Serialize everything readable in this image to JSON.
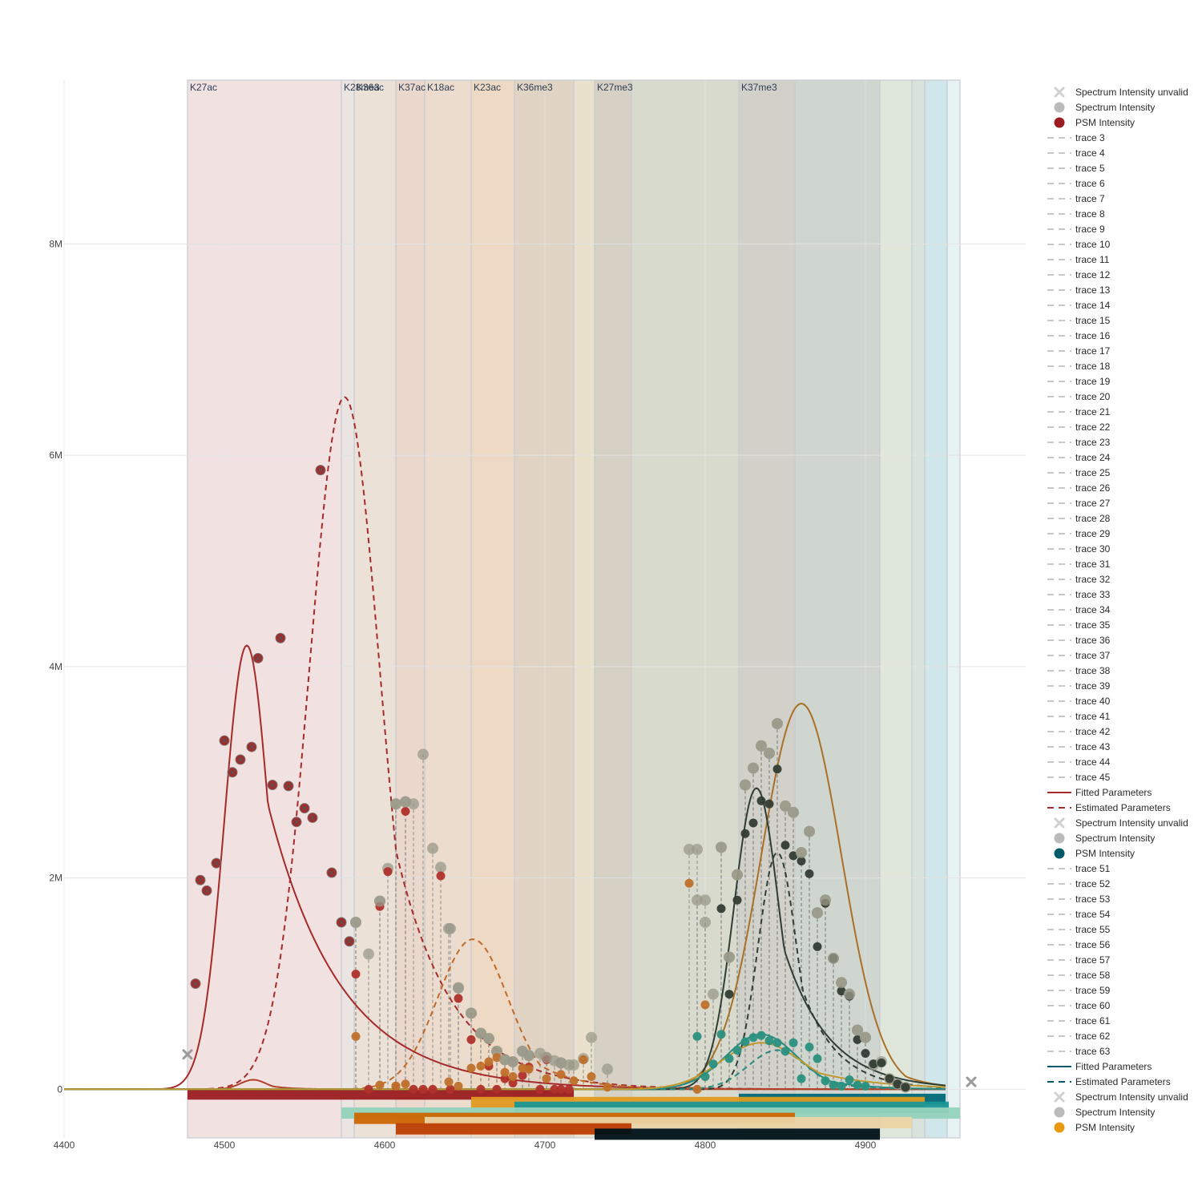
{
  "chart_data": {
    "type": "scatter",
    "title": "",
    "xlabel": "",
    "ylabel": "",
    "xlim": [
      4400,
      5000
    ],
    "ylim": [
      -460000,
      9550000
    ],
    "grid": true,
    "legend_placement": "right",
    "x_ticks": [
      {
        "v": 4400,
        "label": "4400"
      },
      {
        "v": 4500,
        "label": "4500"
      },
      {
        "v": 4600,
        "label": "4600"
      },
      {
        "v": 4700,
        "label": "4700"
      },
      {
        "v": 4800,
        "label": "4800"
      },
      {
        "v": 4900,
        "label": "4900"
      }
    ],
    "y_ticks": [
      {
        "v": 0,
        "label": "0"
      },
      {
        "v": 2000000,
        "label": "2M"
      },
      {
        "v": 4000000,
        "label": "4M"
      },
      {
        "v": 6000000,
        "label": "6M"
      },
      {
        "v": 8000000,
        "label": "8M"
      }
    ],
    "bands": [
      {
        "label": "K27ac",
        "x0": 4477,
        "x1": 4573,
        "color": "#e8c8c8"
      },
      {
        "label": "K28me3",
        "x0": 4573,
        "x1": 4581,
        "color": "#d8d0cc"
      },
      {
        "label": "K36ac",
        "x0": 4581,
        "x1": 4607,
        "color": "#dcc8b4"
      },
      {
        "label": "K37ac",
        "x0": 4607,
        "x1": 4625,
        "color": "#d8b8a4"
      },
      {
        "label": "K18ac",
        "x0": 4625,
        "x1": 4654,
        "color": "#dcc0a4"
      },
      {
        "label": "K23ac",
        "x0": 4654,
        "x1": 4681,
        "color": "#e0bc94"
      },
      {
        "label": "K36me3",
        "x0": 4681,
        "x1": 4718,
        "color": "#c8b094"
      },
      {
        "label": "",
        "x0": 4718,
        "x1": 4731,
        "color": "#d8c8a4"
      },
      {
        "label": "K27me3",
        "x0": 4731,
        "x1": 4754,
        "color": "#b4ac94"
      },
      {
        "label": "",
        "x0": 4754,
        "x1": 4821,
        "color": "#b8bca4"
      },
      {
        "label": "K37me3",
        "x0": 4821,
        "x1": 4856,
        "color": "#acac9c"
      },
      {
        "label": "",
        "x0": 4856,
        "x1": 4909,
        "color": "#a8b4a8"
      },
      {
        "label": "",
        "x0": 4909,
        "x1": 4929,
        "color": "#c4d4bc"
      },
      {
        "label": "",
        "x0": 4929,
        "x1": 4937,
        "color": "#b8ccc0"
      },
      {
        "label": "",
        "x0": 4937,
        "x1": 4951,
        "color": "#a8d4d8"
      },
      {
        "label": "",
        "x0": 4951,
        "x1": 4959,
        "color": "#d4e8e8"
      }
    ],
    "range_bars": [
      {
        "x0": 4477,
        "x1": 4718,
        "y": -45000,
        "color": "#9b1c20"
      },
      {
        "x0": 4821,
        "x1": 4950,
        "y": -95000,
        "color": "#006878"
      },
      {
        "x0": 4654,
        "x1": 4937,
        "y": -125000,
        "color": "#e09a20"
      },
      {
        "x0": 4681,
        "x1": 4952,
        "y": -170000,
        "color": "#1a9696"
      },
      {
        "x0": 4573,
        "x1": 4959,
        "y": -225000,
        "color": "#94d2bc"
      },
      {
        "x0": 4581,
        "x1": 4856,
        "y": -275000,
        "color": "#cc6602"
      },
      {
        "x0": 4625,
        "x1": 4929,
        "y": -315000,
        "color": "#ecd4a4"
      },
      {
        "x0": 4607,
        "x1": 4754,
        "y": -375000,
        "color": "#bc3e04"
      },
      {
        "x0": 4731,
        "x1": 4909,
        "y": -425000,
        "color": "#001218"
      }
    ],
    "unvalid_markers": [
      {
        "x": 4477,
        "y": 330000
      },
      {
        "x": 4966,
        "y": 70000
      }
    ],
    "psm_sets": [
      {
        "name": "red",
        "color": "#a52a2a",
        "xs": [
          4482,
          4485,
          4489,
          4495,
          4500,
          4505,
          4510,
          4517,
          4521,
          4530,
          4535,
          4540,
          4545,
          4550,
          4555,
          4560,
          4567,
          4573,
          4578
        ],
        "spec": [
          1000000,
          1980000,
          1880000,
          2140000,
          3300000,
          3000000,
          3120000,
          3240000,
          4080000,
          2880000,
          4270000,
          2870000,
          2530000,
          2660000,
          2570000,
          5860000,
          2050000,
          1580000,
          1400000
        ],
        "psm": [
          1000000,
          1980000,
          1880000,
          2140000,
          3300000,
          3000000,
          3120000,
          3240000,
          4080000,
          2880000,
          4270000,
          2870000,
          2530000,
          2660000,
          2570000,
          5860000,
          2050000,
          1580000,
          1400000
        ],
        "crossed": true
      },
      {
        "name": "red-b",
        "color": "#b0302a",
        "xs": [
          4582,
          4590,
          4597,
          4602,
          4607,
          4613,
          4618,
          4624,
          4630,
          4635,
          4641,
          4646,
          4654,
          4660,
          4665,
          4670,
          4675,
          4680,
          4686,
          4690,
          4697,
          4701,
          4706,
          4710,
          4715
        ],
        "spec": [
          1580000,
          1280000,
          1780000,
          2090000,
          2700000,
          2720000,
          2700000,
          3170000,
          2280000,
          2100000,
          1520000,
          960000,
          720000,
          530000,
          480000,
          360000,
          280000,
          260000,
          360000,
          320000,
          340000,
          300000,
          270000,
          250000,
          230000
        ],
        "psm": [
          1090000,
          0,
          1730000,
          2060000,
          30000,
          2630000,
          0,
          0,
          0,
          2020000,
          0,
          860000,
          470000,
          0,
          220000,
          0,
          100000,
          60000,
          130000,
          210000,
          0,
          280000,
          0,
          0,
          0
        ],
        "crossed": false
      },
      {
        "name": "orange",
        "color": "#c0702a",
        "xs": [
          4582,
          4597,
          4607,
          4613,
          4640,
          4646,
          4654,
          4660,
          4665,
          4670,
          4675,
          4680,
          4686,
          4690,
          4701,
          4710,
          4718,
          4724,
          4729,
          4739,
          4790,
          4795,
          4800
        ],
        "spec": [
          1580000,
          1780000,
          2700000,
          2720000,
          1520000,
          960000,
          720000,
          530000,
          480000,
          360000,
          280000,
          260000,
          360000,
          320000,
          300000,
          250000,
          230000,
          290000,
          490000,
          190000,
          2270000,
          1790000,
          1580000
        ],
        "psm": [
          500000,
          40000,
          30000,
          50000,
          70000,
          30000,
          200000,
          220000,
          260000,
          300000,
          160000,
          120000,
          200000,
          190000,
          100000,
          140000,
          80000,
          280000,
          120000,
          20000,
          1950000,
          0,
          800000
        ],
        "crossed": false
      },
      {
        "name": "dark",
        "color": "#333d33",
        "xs": [
          4810,
          4815,
          4820,
          4825,
          4830,
          4835,
          4840,
          4845,
          4850,
          4855,
          4860,
          4865,
          4870,
          4875,
          4880,
          4885,
          4890,
          4895,
          4900,
          4905,
          4910,
          4915,
          4920,
          4925
        ],
        "spec": [
          2290000,
          1250000,
          2030000,
          2880000,
          3040000,
          3250000,
          3180000,
          3460000,
          2680000,
          2620000,
          2240000,
          2440000,
          1670000,
          1790000,
          1240000,
          1010000,
          900000,
          560000,
          490000,
          230000,
          260000,
          100000,
          50000,
          20000
        ],
        "psm": [
          1710000,
          900000,
          1790000,
          2420000,
          2520000,
          2730000,
          2700000,
          3030000,
          2310000,
          2210000,
          2160000,
          2040000,
          1350000,
          1760000,
          1240000,
          930000,
          880000,
          470000,
          340000,
          240000,
          250000,
          100000,
          50000,
          20000
        ],
        "crossed": false
      },
      {
        "name": "teal",
        "color": "#2a9080",
        "xs": [
          4795,
          4800,
          4805,
          4810,
          4815,
          4820,
          4825,
          4830,
          4835,
          4840,
          4845,
          4850,
          4855,
          4860,
          4865,
          4870,
          4875,
          4880,
          4885,
          4890,
          4895,
          4900
        ],
        "spec": [
          2270000,
          1790000,
          900000,
          2290000,
          1250000,
          2030000,
          2880000,
          3040000,
          3250000,
          3180000,
          3460000,
          2680000,
          2620000,
          2240000,
          2440000,
          1670000,
          1790000,
          1240000,
          1010000,
          900000,
          560000,
          490000
        ],
        "psm": [
          500000,
          120000,
          240000,
          520000,
          290000,
          370000,
          450000,
          490000,
          510000,
          460000,
          440000,
          360000,
          440000,
          100000,
          400000,
          290000,
          80000,
          40000,
          30000,
          90000,
          40000,
          30000
        ],
        "crossed": false
      }
    ],
    "curves": [
      {
        "name": "Fitted Parameters",
        "color": "#a52a2a",
        "dashed": false,
        "mu": 4514,
        "sigma": 14,
        "tau": 45,
        "amp": 4200000,
        "x0": 4400,
        "x1": 4950
      },
      {
        "name": "Estimated Parameters",
        "color": "#a52a2a",
        "dashed": true,
        "mu": 4575,
        "sigma": 22,
        "tau": 35,
        "amp": 6550000,
        "x0": 4400,
        "x1": 4950
      },
      {
        "name": "",
        "color": "#c06a2a",
        "dashed": true,
        "mu": 4655,
        "sigma": 22,
        "tau": 25,
        "amp": 1420000,
        "x0": 4400,
        "x1": 4950
      },
      {
        "name": "",
        "color": "#b0402a",
        "dashed": false,
        "mu": 4518,
        "sigma": 8,
        "tau": 12,
        "amp": 90000,
        "x0": 4400,
        "x1": 4950
      },
      {
        "name": "",
        "color": "#a87028",
        "dashed": false,
        "mu": 4860,
        "sigma": 25,
        "tau": 20,
        "amp": 3650000,
        "x0": 4400,
        "x1": 4950
      },
      {
        "name": "",
        "color": "#2f3e34",
        "dashed": false,
        "mu": 4832,
        "sigma": 14,
        "tau": 28,
        "amp": 2850000,
        "x0": 4400,
        "x1": 4950
      },
      {
        "name": "",
        "color": "#2f3e34",
        "dashed": true,
        "mu": 4845,
        "sigma": 12,
        "tau": 22,
        "amp": 2240000,
        "x0": 4400,
        "x1": 4950
      },
      {
        "name": "Fitted Parameters",
        "color": "#2a8a80",
        "dashed": false,
        "mu": 4835,
        "sigma": 22,
        "tau": 24,
        "amp": 520000,
        "x0": 4400,
        "x1": 4950
      },
      {
        "name": "Estimated Parameters",
        "color": "#2a8a80",
        "dashed": true,
        "mu": 4845,
        "sigma": 18,
        "tau": 20,
        "amp": 370000,
        "x0": 4400,
        "x1": 4950
      },
      {
        "name": "",
        "color": "#c09a30",
        "dashed": false,
        "mu": 4835,
        "sigma": 25,
        "tau": 40,
        "amp": 440000,
        "x0": 4400,
        "x1": 4950
      }
    ]
  },
  "legend": [
    {
      "label": "Spectrum Intensity unvalid",
      "symbol": "xmark",
      "color": "#d0d0d0"
    },
    {
      "label": "Spectrum Intensity",
      "symbol": "dot",
      "color": "#bbbbbb"
    },
    {
      "label": "PSM Intensity",
      "symbol": "dot",
      "color": "#9b1c20"
    },
    {
      "label": "trace 3",
      "symbol": "dash",
      "color": "#c8c8c8"
    },
    {
      "label": "trace 4",
      "symbol": "dash",
      "color": "#c8c8c8"
    },
    {
      "label": "trace 5",
      "symbol": "dash",
      "color": "#c8c8c8"
    },
    {
      "label": "trace 6",
      "symbol": "dash",
      "color": "#c8c8c8"
    },
    {
      "label": "trace 7",
      "symbol": "dash",
      "color": "#c8c8c8"
    },
    {
      "label": "trace 8",
      "symbol": "dash",
      "color": "#c8c8c8"
    },
    {
      "label": "trace 9",
      "symbol": "dash",
      "color": "#c8c8c8"
    },
    {
      "label": "trace 10",
      "symbol": "dash",
      "color": "#c8c8c8"
    },
    {
      "label": "trace 11",
      "symbol": "dash",
      "color": "#c8c8c8"
    },
    {
      "label": "trace 12",
      "symbol": "dash",
      "color": "#c8c8c8"
    },
    {
      "label": "trace 13",
      "symbol": "dash",
      "color": "#c8c8c8"
    },
    {
      "label": "trace 14",
      "symbol": "dash",
      "color": "#c8c8c8"
    },
    {
      "label": "trace 15",
      "symbol": "dash",
      "color": "#c8c8c8"
    },
    {
      "label": "trace 16",
      "symbol": "dash",
      "color": "#c8c8c8"
    },
    {
      "label": "trace 17",
      "symbol": "dash",
      "color": "#c8c8c8"
    },
    {
      "label": "trace 18",
      "symbol": "dash",
      "color": "#c8c8c8"
    },
    {
      "label": "trace 19",
      "symbol": "dash",
      "color": "#c8c8c8"
    },
    {
      "label": "trace 20",
      "symbol": "dash",
      "color": "#c8c8c8"
    },
    {
      "label": "trace 21",
      "symbol": "dash",
      "color": "#c8c8c8"
    },
    {
      "label": "trace 22",
      "symbol": "dash",
      "color": "#c8c8c8"
    },
    {
      "label": "trace 23",
      "symbol": "dash",
      "color": "#c8c8c8"
    },
    {
      "label": "trace 24",
      "symbol": "dash",
      "color": "#c8c8c8"
    },
    {
      "label": "trace 25",
      "symbol": "dash",
      "color": "#c8c8c8"
    },
    {
      "label": "trace 26",
      "symbol": "dash",
      "color": "#c8c8c8"
    },
    {
      "label": "trace 27",
      "symbol": "dash",
      "color": "#c8c8c8"
    },
    {
      "label": "trace 28",
      "symbol": "dash",
      "color": "#c8c8c8"
    },
    {
      "label": "trace 29",
      "symbol": "dash",
      "color": "#c8c8c8"
    },
    {
      "label": "trace 30",
      "symbol": "dash",
      "color": "#c8c8c8"
    },
    {
      "label": "trace 31",
      "symbol": "dash",
      "color": "#c8c8c8"
    },
    {
      "label": "trace 32",
      "symbol": "dash",
      "color": "#c8c8c8"
    },
    {
      "label": "trace 33",
      "symbol": "dash",
      "color": "#c8c8c8"
    },
    {
      "label": "trace 34",
      "symbol": "dash",
      "color": "#c8c8c8"
    },
    {
      "label": "trace 35",
      "symbol": "dash",
      "color": "#c8c8c8"
    },
    {
      "label": "trace 36",
      "symbol": "dash",
      "color": "#c8c8c8"
    },
    {
      "label": "trace 37",
      "symbol": "dash",
      "color": "#c8c8c8"
    },
    {
      "label": "trace 38",
      "symbol": "dash",
      "color": "#c8c8c8"
    },
    {
      "label": "trace 39",
      "symbol": "dash",
      "color": "#c8c8c8"
    },
    {
      "label": "trace 40",
      "symbol": "dash",
      "color": "#c8c8c8"
    },
    {
      "label": "trace 41",
      "symbol": "dash",
      "color": "#c8c8c8"
    },
    {
      "label": "trace 42",
      "symbol": "dash",
      "color": "#c8c8c8"
    },
    {
      "label": "trace 43",
      "symbol": "dash",
      "color": "#c8c8c8"
    },
    {
      "label": "trace 44",
      "symbol": "dash",
      "color": "#c8c8c8"
    },
    {
      "label": "trace 45",
      "symbol": "dash",
      "color": "#c8c8c8"
    },
    {
      "label": "Fitted Parameters",
      "symbol": "line",
      "color": "#a52a2a"
    },
    {
      "label": "Estimated Parameters",
      "symbol": "dash",
      "color": "#a52a2a"
    },
    {
      "label": "Spectrum Intensity unvalid",
      "symbol": "xmark",
      "color": "#d0d0d0"
    },
    {
      "label": "Spectrum Intensity",
      "symbol": "dot",
      "color": "#bbbbbb"
    },
    {
      "label": "PSM Intensity",
      "symbol": "dot",
      "color": "#005a6a"
    },
    {
      "label": "trace 51",
      "symbol": "dash",
      "color": "#c8c8c8"
    },
    {
      "label": "trace 52",
      "symbol": "dash",
      "color": "#c8c8c8"
    },
    {
      "label": "trace 53",
      "symbol": "dash",
      "color": "#c8c8c8"
    },
    {
      "label": "trace 54",
      "symbol": "dash",
      "color": "#c8c8c8"
    },
    {
      "label": "trace 55",
      "symbol": "dash",
      "color": "#c8c8c8"
    },
    {
      "label": "trace 56",
      "symbol": "dash",
      "color": "#c8c8c8"
    },
    {
      "label": "trace 57",
      "symbol": "dash",
      "color": "#c8c8c8"
    },
    {
      "label": "trace 58",
      "symbol": "dash",
      "color": "#c8c8c8"
    },
    {
      "label": "trace 59",
      "symbol": "dash",
      "color": "#c8c8c8"
    },
    {
      "label": "trace 60",
      "symbol": "dash",
      "color": "#c8c8c8"
    },
    {
      "label": "trace 61",
      "symbol": "dash",
      "color": "#c8c8c8"
    },
    {
      "label": "trace 62",
      "symbol": "dash",
      "color": "#c8c8c8"
    },
    {
      "label": "trace 63",
      "symbol": "dash",
      "color": "#c8c8c8"
    },
    {
      "label": "Fitted Parameters",
      "symbol": "line",
      "color": "#005a6a"
    },
    {
      "label": "Estimated Parameters",
      "symbol": "dash",
      "color": "#005a6a"
    },
    {
      "label": "Spectrum Intensity unvalid",
      "symbol": "xmark",
      "color": "#d0d0d0"
    },
    {
      "label": "Spectrum Intensity",
      "symbol": "dot",
      "color": "#bbbbbb"
    },
    {
      "label": "PSM Intensity",
      "symbol": "dot",
      "color": "#e89b10"
    }
  ]
}
